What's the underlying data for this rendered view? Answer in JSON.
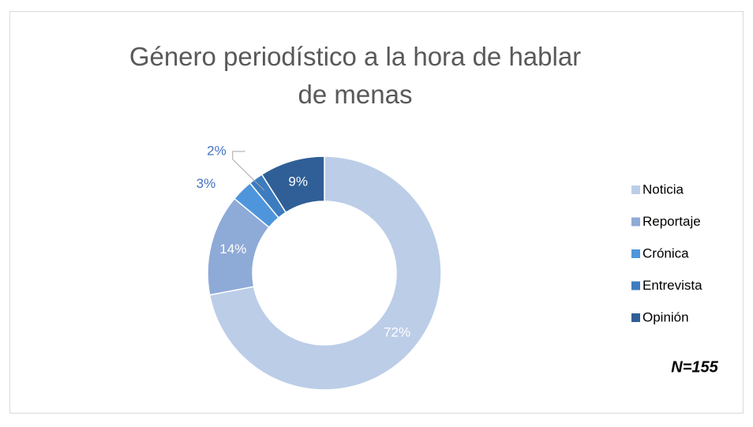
{
  "chart_data": {
    "type": "donut",
    "title": "Género periodístico a la hora de hablar de menas",
    "categories": [
      "Noticia",
      "Reportaje",
      "Crónica",
      "Entrevista",
      "Opinión"
    ],
    "values": [
      72,
      14,
      3,
      2,
      9
    ],
    "value_labels": [
      "72%",
      "14%",
      "3%",
      "2%",
      "9%"
    ],
    "colors": [
      "#bccde8",
      "#8eaad7",
      "#4f95dc",
      "#3d7cbf",
      "#2f5f96"
    ],
    "legend": "right",
    "annotation": "N=155"
  }
}
